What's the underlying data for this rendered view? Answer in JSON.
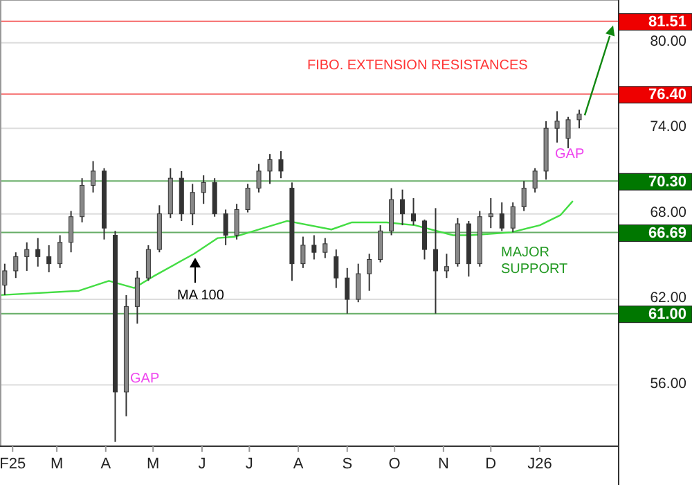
{
  "chart_data": {
    "type": "candlestick",
    "color": "#333333",
    "x": [
      "2025-01-27",
      "2025-02-03",
      "2025-02-10",
      "2025-02-17",
      "2025-02-24",
      "2025-03-03",
      "2025-03-10",
      "2025-03-17",
      "2025-03-24",
      "2025-03-31",
      "2025-04-07",
      "2025-04-14",
      "2025-04-21",
      "2025-04-28",
      "2025-05-05",
      "2025-05-12",
      "2025-05-19",
      "2025-05-26",
      "2025-06-02",
      "2025-06-09",
      "2025-06-16",
      "2025-06-23",
      "2025-06-30",
      "2025-07-07",
      "2025-07-14",
      "2025-07-21",
      "2025-07-28",
      "2025-08-04",
      "2025-08-11",
      "2025-08-18",
      "2025-08-25",
      "2025-09-01",
      "2025-09-08",
      "2025-09-15",
      "2025-09-22",
      "2025-09-29",
      "2025-10-06",
      "2025-10-13",
      "2025-10-20",
      "2025-10-27",
      "2025-11-03",
      "2025-11-10",
      "2025-11-17",
      "2025-11-24",
      "2025-12-01",
      "2025-12-08",
      "2025-12-15",
      "2025-12-22",
      "2025-12-29",
      "2026-01-05",
      "2026-01-12",
      "2026-01-19",
      "2026-01-26"
    ],
    "ohlc": [
      [
        63,
        64.5,
        62.3,
        64
      ],
      [
        64,
        65.3,
        63.5,
        65
      ],
      [
        65,
        66,
        64,
        65.5
      ],
      [
        65.5,
        66.3,
        64.3,
        65
      ],
      [
        65,
        65.8,
        63.9,
        64.5
      ],
      [
        64.5,
        66.5,
        64.2,
        66
      ],
      [
        66,
        68.2,
        65.3,
        67.8
      ],
      [
        67.8,
        70.5,
        67.4,
        70
      ],
      [
        70,
        71.7,
        69.5,
        71
      ],
      [
        71,
        71.2,
        66.2,
        67
      ],
      [
        66.5,
        66.8,
        52,
        55.5
      ],
      [
        55.5,
        62.3,
        53.8,
        61.5
      ],
      [
        61.5,
        64,
        60.3,
        63.5
      ],
      [
        63.5,
        65.8,
        63.3,
        65.5
      ],
      [
        65.5,
        68.6,
        65.3,
        68
      ],
      [
        68,
        71.2,
        67.7,
        70.5
      ],
      [
        70.5,
        71,
        67.5,
        68
      ],
      [
        68,
        70.1,
        67.2,
        69.5
      ],
      [
        69.5,
        70.7,
        68.7,
        70.2
      ],
      [
        70.2,
        70.5,
        67.8,
        68
      ],
      [
        68,
        68.3,
        65.8,
        66.5
      ],
      [
        66.5,
        68.7,
        66.2,
        68.3
      ],
      [
        68.3,
        70.1,
        68.1,
        69.8
      ],
      [
        69.8,
        71.5,
        69.5,
        71
      ],
      [
        71,
        72.2,
        70.1,
        71.8
      ],
      [
        71.8,
        72.4,
        70.5,
        71
      ],
      [
        69.8,
        70.2,
        63.3,
        64.5
      ],
      [
        64.5,
        66.4,
        64.2,
        65.8
      ],
      [
        65.8,
        66.5,
        64.8,
        65.3
      ],
      [
        65.3,
        66.3,
        64.9,
        65.9
      ],
      [
        65,
        65.5,
        62.8,
        63.5
      ],
      [
        63.5,
        64.2,
        61,
        62
      ],
      [
        62,
        64.5,
        61.8,
        63.8
      ],
      [
        63.8,
        65.2,
        62.6,
        64.8
      ],
      [
        64.8,
        67.2,
        64.6,
        66.8
      ],
      [
        66.8,
        69.8,
        66.5,
        69
      ],
      [
        69,
        69.7,
        67.2,
        68
      ],
      [
        68,
        69.1,
        67.2,
        67.5
      ],
      [
        67.5,
        67.6,
        64.8,
        65.5
      ],
      [
        65.5,
        68.4,
        61,
        64
      ],
      [
        64,
        65.2,
        63.5,
        64.3
      ],
      [
        64.5,
        67.7,
        64.3,
        67.3
      ],
      [
        67.3,
        67.5,
        63.6,
        64.5
      ],
      [
        64.5,
        68.2,
        64.3,
        67.8
      ],
      [
        67.8,
        69.1,
        67,
        68
      ],
      [
        68,
        68.8,
        66.8,
        67
      ],
      [
        67,
        68.8,
        66.7,
        68.5
      ],
      [
        68.5,
        70.3,
        68.2,
        69.8
      ],
      [
        69.8,
        71.2,
        69.5,
        71
      ],
      [
        71,
        74.5,
        70.4,
        74
      ],
      [
        74,
        75.2,
        73,
        74.5
      ],
      [
        73.3,
        74.8,
        72.6,
        74.6
      ],
      [
        74.6,
        75.3,
        74,
        75
      ]
    ],
    "series": [
      {
        "type": "line",
        "color": "#44dd44",
        "x": [
          "2025-01-24",
          "2025-03-15",
          "2025-04-03",
          "2025-04-19",
          "2025-05-01",
          "2025-05-27",
          "2025-06-11",
          "2025-06-22",
          "2025-07-10",
          "2025-07-25",
          "2025-08-22",
          "2025-09-04",
          "2025-09-26",
          "2025-10-14",
          "2025-11-07",
          "2025-11-18",
          "2025-12-14",
          "2026-01-01",
          "2026-01-14",
          "2026-01-22"
        ],
        "values": [
          62.3,
          62.6,
          63.3,
          62.8,
          63.6,
          65.2,
          66.3,
          66.4,
          67,
          67.5,
          66.9,
          67.4,
          67.4,
          67.2,
          66.5,
          66.5,
          66.7,
          67.2,
          67.9,
          68.9
        ]
      }
    ],
    "xlim": [
      "2025-01-24",
      "2026-02-20"
    ],
    "xticks": [
      {
        "value": "2025-02-01",
        "label": "F25"
      },
      {
        "value": "2025-03-01",
        "label": "M"
      },
      {
        "value": "2025-04-01",
        "label": "A"
      },
      {
        "value": "2025-05-01",
        "label": "M"
      },
      {
        "value": "2025-06-01",
        "label": "J"
      },
      {
        "value": "2025-07-01",
        "label": "J"
      },
      {
        "value": "2025-08-01",
        "label": "A"
      },
      {
        "value": "2025-09-01",
        "label": "S"
      },
      {
        "value": "2025-10-01",
        "label": "O"
      },
      {
        "value": "2025-11-01",
        "label": "N"
      },
      {
        "value": "2025-12-01",
        "label": "D"
      },
      {
        "value": "2026-01-01",
        "label": "J26"
      }
    ],
    "ylim": [
      51.7,
      83
    ],
    "yticks": [
      {
        "value": 56,
        "label": "56.00"
      },
      {
        "value": 62,
        "label": "62.00"
      },
      {
        "value": 68,
        "label": "68.00"
      },
      {
        "value": 74,
        "label": "74.00"
      },
      {
        "value": 80,
        "label": "80.00"
      }
    ],
    "grid": "y",
    "ref_lines": [
      {
        "axis": "y",
        "value": 81.51,
        "label": "81.51",
        "color": "#ee0000"
      },
      {
        "axis": "y",
        "value": 76.4,
        "label": "76.40",
        "color": "#ee0000"
      },
      {
        "axis": "y",
        "value": 70.3,
        "label": "70.30",
        "color": "#007700"
      },
      {
        "axis": "y",
        "value": 66.69,
        "label": "66.69",
        "color": "#007700"
      },
      {
        "axis": "y",
        "value": 61,
        "label": "61.00",
        "color": "#007700"
      }
    ],
    "annotations": [
      "FIBO. EXTENSION RESISTANCES",
      "GAP",
      "MA 100",
      "GAP",
      "MAJOR\nSUPPORT"
    ]
  }
}
